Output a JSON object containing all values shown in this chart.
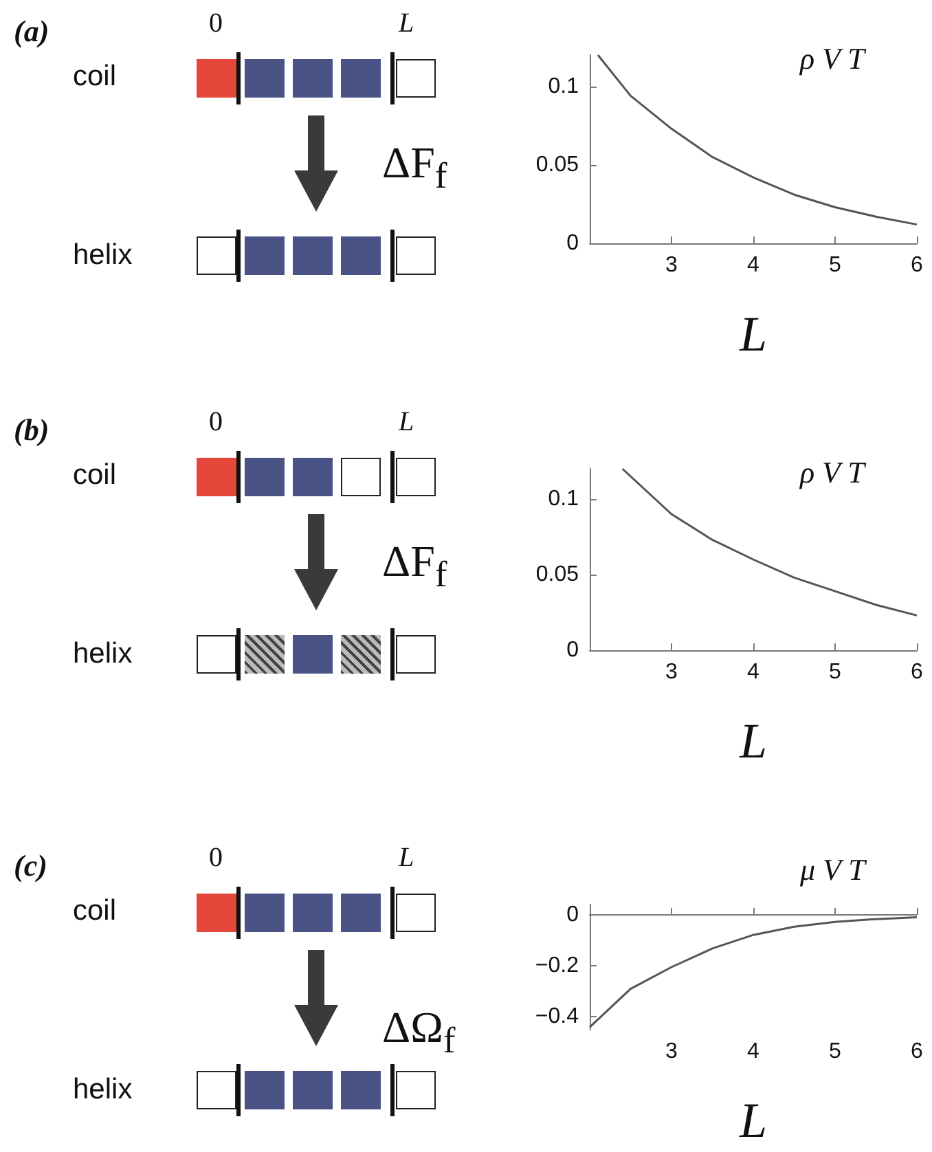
{
  "chart_data": [
    {
      "type": "line",
      "xlabel": "L",
      "ylabel": "ΔF$_{f}$",
      "annotations": [
        "ρ V T",
        "coil",
        "helix",
        "0",
        "L",
        "(a)"
      ],
      "color": "#555555",
      "x": [
        2.1,
        2.5,
        3,
        3.5,
        4,
        4.5,
        5,
        5.5,
        6
      ],
      "values": [
        0.12,
        0.094,
        0.073,
        0.055,
        0.042,
        0.031,
        0.023,
        0.017,
        0.012
      ],
      "xlim": [
        2,
        6
      ],
      "xticks": [
        3,
        4,
        5,
        6
      ],
      "ylim": [
        0,
        0.12
      ],
      "yticks": [
        0,
        0.05,
        0.1
      ]
    },
    {
      "type": "line",
      "xlabel": "L",
      "ylabel": "ΔF$_{f}$",
      "annotations": [
        "ρ V T",
        "coil",
        "helix",
        "0",
        "L",
        "(b)"
      ],
      "color": "#555555",
      "x": [
        2.4,
        3,
        3.5,
        4,
        4.5,
        5,
        5.5,
        6
      ],
      "values": [
        0.12,
        0.09,
        0.073,
        0.06,
        0.048,
        0.039,
        0.03,
        0.023
      ],
      "xlim": [
        2,
        6
      ],
      "xticks": [
        3,
        4,
        5,
        6
      ],
      "ylim": [
        0,
        0.12
      ],
      "yticks": [
        0,
        0.05,
        0.1
      ]
    },
    {
      "type": "line",
      "xlabel": "L",
      "ylabel": "ΔΩ$_{f}$",
      "annotations": [
        "μ V T",
        "coil",
        "helix",
        "0",
        "L",
        "(c)"
      ],
      "color": "#555555",
      "x": [
        2,
        2.5,
        3,
        3.5,
        4,
        4.5,
        5,
        5.5,
        6
      ],
      "values": [
        -0.44,
        -0.29,
        -0.205,
        -0.132,
        -0.079,
        -0.047,
        -0.028,
        -0.017,
        -0.01
      ],
      "xlim": [
        2,
        6
      ],
      "xticks": [
        3,
        4,
        5,
        6
      ],
      "ylim": [
        -0.45,
        0.04
      ],
      "yticks": [
        0,
        -0.2,
        -0.4
      ]
    }
  ]
}
